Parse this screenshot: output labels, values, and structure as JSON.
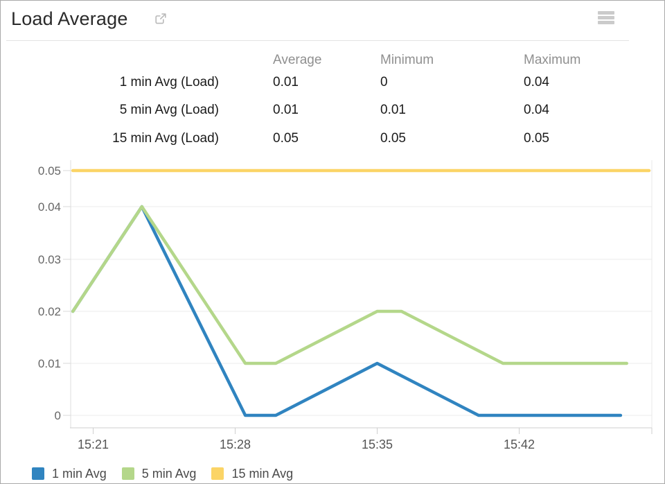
{
  "widget": {
    "title": "Load Average",
    "icons": [
      "open-in-new-icon",
      "menu-icon"
    ]
  },
  "stats_table": {
    "columns": [
      "Average",
      "Minimum",
      "Maximum"
    ],
    "rows": [
      {
        "label": "1 min Avg (Load)",
        "average": "0.01",
        "minimum": "0",
        "maximum": "0.04"
      },
      {
        "label": "5 min Avg (Load)",
        "average": "0.01",
        "minimum": "0.01",
        "maximum": "0.04"
      },
      {
        "label": "15 min Avg (Load)",
        "average": "0.05",
        "minimum": "0.05",
        "maximum": "0.05"
      }
    ]
  },
  "chart_data": {
    "type": "line",
    "title": "Load Average",
    "grid": true,
    "legend_position": "bottom-left",
    "x_axis": {
      "unit": "time of day (HH:MM); numeric t = minutes after 15:00",
      "ticks": [
        {
          "t": 21,
          "label": "15:21"
        },
        {
          "t": 28,
          "label": "15:28"
        },
        {
          "t": 35,
          "label": "15:35"
        },
        {
          "t": 42,
          "label": "15:42"
        }
      ],
      "range_t": [
        19.8,
        48.4
      ]
    },
    "y_axis": {
      "range": [
        0,
        0.05
      ],
      "ticks": [
        {
          "v": 0.05,
          "label": "0.05"
        },
        {
          "v": 0.04,
          "label": "0.04"
        },
        {
          "v": 0.03,
          "label": "0.03"
        },
        {
          "v": 0.02,
          "label": "0.02"
        },
        {
          "v": 0.01,
          "label": "0.01"
        },
        {
          "v": 0,
          "label": "0"
        }
      ]
    },
    "series": [
      {
        "name": "1 min Avg",
        "color": "#3084c0",
        "points_t_v": [
          [
            20,
            0.02
          ],
          [
            23.4,
            0.04
          ],
          [
            28.5,
            0
          ],
          [
            30,
            0
          ],
          [
            35,
            0.01
          ],
          [
            40,
            0
          ],
          [
            47,
            0
          ]
        ]
      },
      {
        "name": "5 min Avg",
        "color": "#b4d78a",
        "points_t_v": [
          [
            20,
            0.02
          ],
          [
            23.4,
            0.04
          ],
          [
            28.5,
            0.01
          ],
          [
            30,
            0.01
          ],
          [
            35,
            0.02
          ],
          [
            36.2,
            0.02
          ],
          [
            41.2,
            0.01
          ],
          [
            47.3,
            0.01
          ]
        ]
      },
      {
        "name": "15 min Avg",
        "color": "#fbd466",
        "points_t_v": [
          [
            20,
            0.05
          ],
          [
            48.4,
            0.05
          ]
        ]
      }
    ]
  }
}
